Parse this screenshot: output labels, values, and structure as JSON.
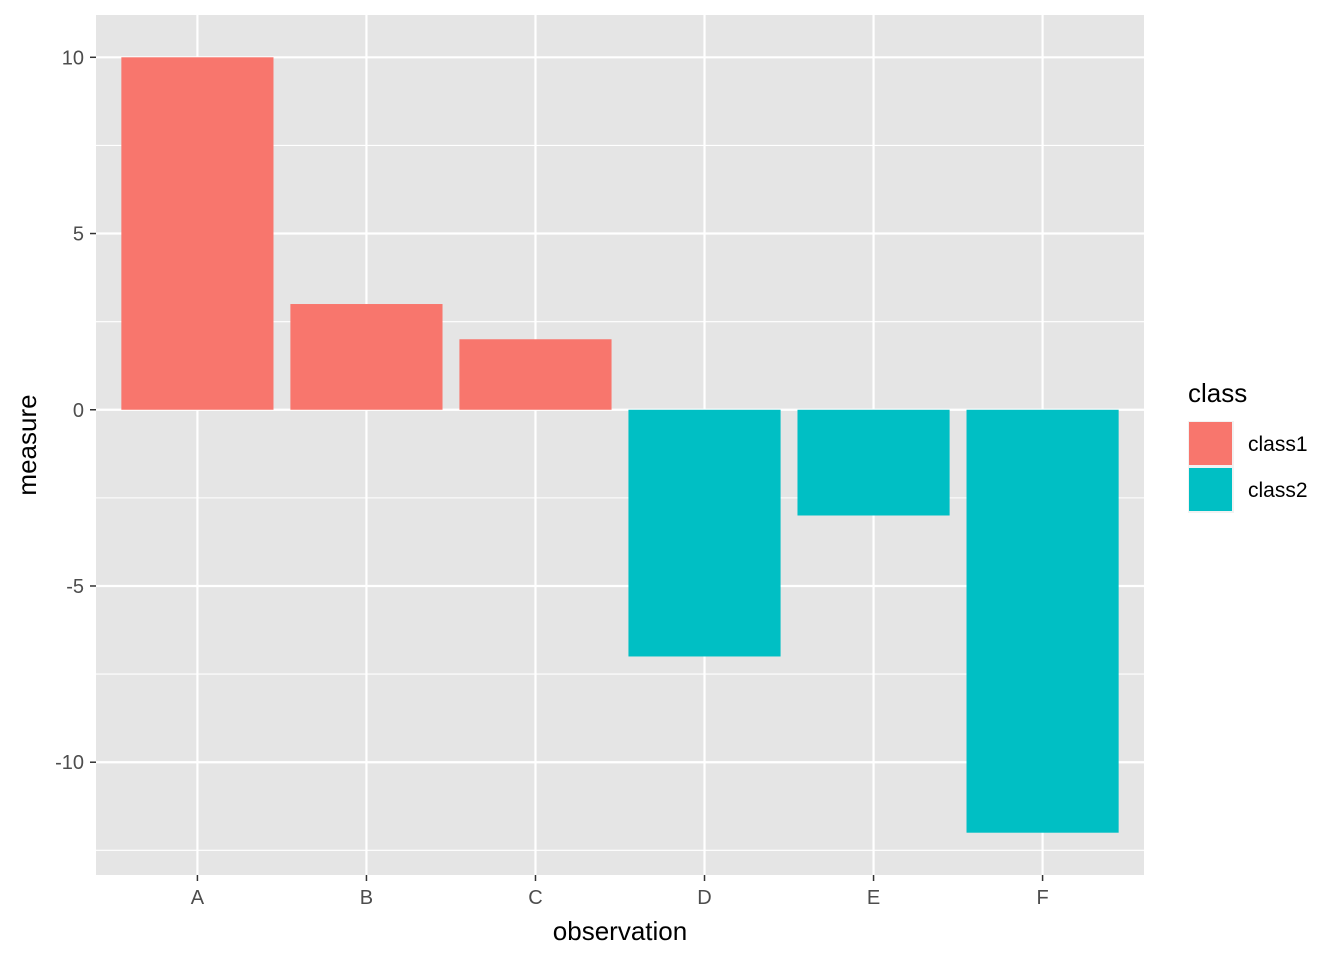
{
  "chart_data": {
    "type": "bar",
    "title": "",
    "xlabel": "observation",
    "ylabel": "measure",
    "categories": [
      "A",
      "B",
      "C",
      "D",
      "E",
      "F"
    ],
    "values": [
      10,
      3,
      2,
      -7,
      -3,
      -12
    ],
    "groups": [
      "class1",
      "class1",
      "class1",
      "class2",
      "class2",
      "class2"
    ],
    "ylim": [
      -13.2,
      11.2
    ],
    "yticks": [
      -10,
      -5,
      0,
      5,
      10
    ],
    "ytick_labels": [
      "-10",
      "-5",
      "0",
      "5",
      "10"
    ],
    "grid": true,
    "legend": {
      "title": "class",
      "position": "right",
      "entries": [
        {
          "label": "class1",
          "color": "#F8766D"
        },
        {
          "label": "class2",
          "color": "#00BFC4"
        }
      ]
    },
    "colors": {
      "panel_background": "#E5E5E5",
      "grid_line": "#FFFFFF",
      "class1": "#F8766D",
      "class2": "#00BFC4"
    }
  }
}
